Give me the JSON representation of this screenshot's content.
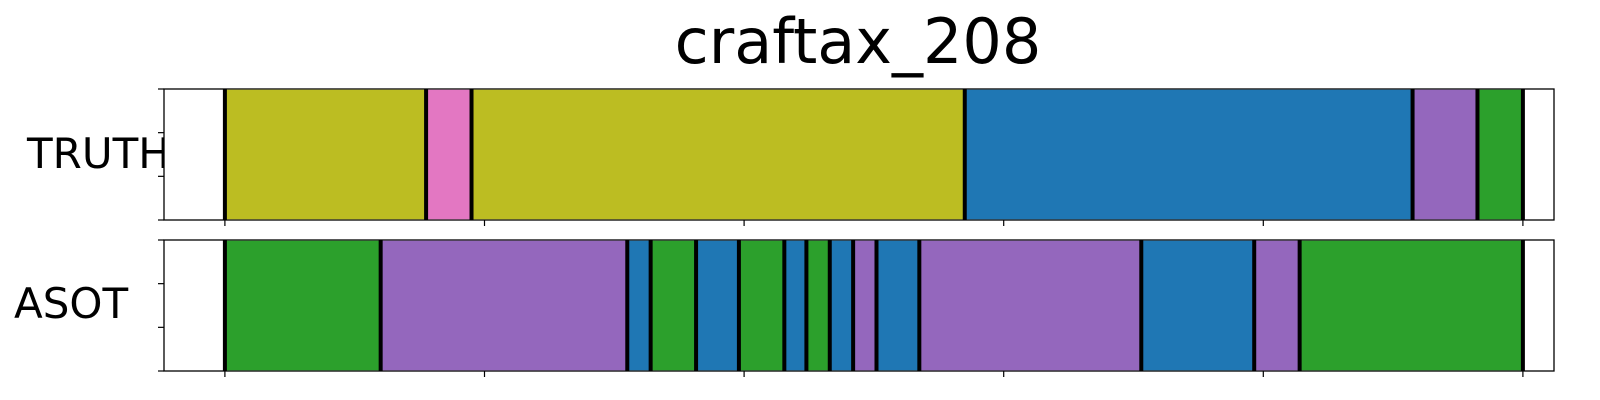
{
  "chart_data": {
    "type": "bar",
    "title": "craftax_208",
    "x_range": [
      0,
      100
    ],
    "rows": [
      {
        "label": "TRUTH",
        "segments": [
          {
            "start": 5.0,
            "end": 20.5,
            "color": "#bcbd22"
          },
          {
            "start": 20.5,
            "end": 24.0,
            "color": "#e377c2"
          },
          {
            "start": 24.0,
            "end": 62.0,
            "color": "#bcbd22"
          },
          {
            "start": 62.0,
            "end": 96.5,
            "color": "#1f77b4"
          },
          {
            "start": 96.5,
            "end": 101.5,
            "color": "#9467bd"
          },
          {
            "start": 101.5,
            "end": 105.0,
            "color": "#2ca02c"
          }
        ]
      },
      {
        "label": "ASOT",
        "segments": [
          {
            "start": 5.0,
            "end": 17.0,
            "color": "#2ca02c"
          },
          {
            "start": 17.0,
            "end": 36.0,
            "color": "#9467bd"
          },
          {
            "start": 36.0,
            "end": 37.8,
            "color": "#1f77b4"
          },
          {
            "start": 37.8,
            "end": 41.3,
            "color": "#2ca02c"
          },
          {
            "start": 41.3,
            "end": 44.6,
            "color": "#1f77b4"
          },
          {
            "start": 44.6,
            "end": 48.1,
            "color": "#2ca02c"
          },
          {
            "start": 48.1,
            "end": 49.8,
            "color": "#1f77b4"
          },
          {
            "start": 49.8,
            "end": 51.6,
            "color": "#2ca02c"
          },
          {
            "start": 51.6,
            "end": 53.4,
            "color": "#1f77b4"
          },
          {
            "start": 53.4,
            "end": 55.2,
            "color": "#9467bd"
          },
          {
            "start": 55.2,
            "end": 58.5,
            "color": "#1f77b4"
          },
          {
            "start": 58.5,
            "end": 75.6,
            "color": "#9467bd"
          },
          {
            "start": 75.6,
            "end": 84.3,
            "color": "#1f77b4"
          },
          {
            "start": 84.3,
            "end": 87.8,
            "color": "#9467bd"
          },
          {
            "start": 87.8,
            "end": 105.0,
            "color": "#2ca02c"
          }
        ]
      }
    ],
    "x_ticks": [
      5,
      25,
      45,
      65,
      85,
      105
    ],
    "grid": false,
    "legend": "none"
  }
}
